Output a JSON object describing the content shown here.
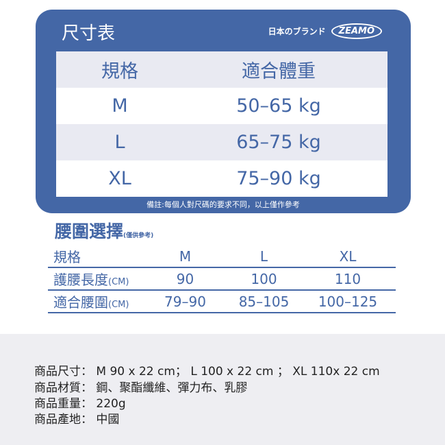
{
  "card": {
    "title": "尺寸表",
    "brand_text": "日本のブランド",
    "logo": "ZEAMO",
    "headers": [
      "規格",
      "適合體重"
    ],
    "rows": [
      [
        "M",
        "50–65 kg"
      ],
      [
        "L",
        "65–75 kg"
      ],
      [
        "XL",
        "75–90 kg"
      ]
    ],
    "note": "備註:每個人對尺碼的要求不同，以上僅作參考"
  },
  "waist": {
    "title": "腰圍選擇",
    "subtitle": "(僅供參考)",
    "headers": [
      "規格",
      "M",
      "L",
      "XL"
    ],
    "rows": [
      {
        "label": "護腰長度",
        "unit": "(CM)",
        "values": [
          "90",
          "100",
          "110"
        ]
      },
      {
        "label": "適合腰圍",
        "unit": "(CM)",
        "values": [
          "79–90",
          "85–105",
          "100–125"
        ]
      }
    ]
  },
  "details": [
    "商品尺寸： M 90 x 22 cm； L  100 x 22 cm ； XL  110x 22 cm",
    "商品材質： 鋼、聚酯纖維、彈力布、乳膠",
    "商品重量： 220g",
    "商品產地： 中國"
  ],
  "colors": {
    "accent": "#4467a6",
    "row_alt": "#e9eaf2",
    "footer_bg": "#eeeef2"
  }
}
